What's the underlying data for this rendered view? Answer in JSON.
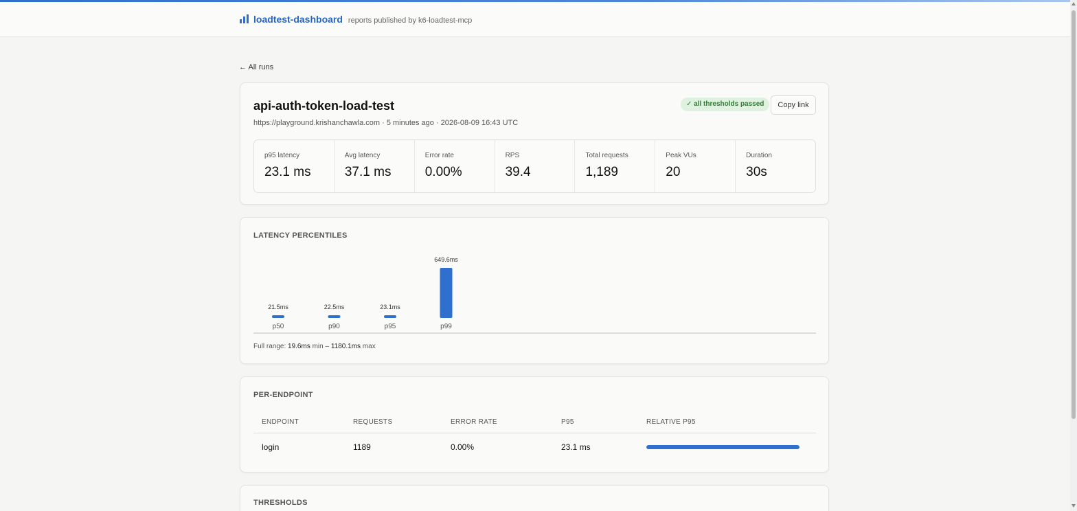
{
  "header": {
    "brand_name": "loadtest-dashboard",
    "brand_sub": "reports published by k6-loadtest-mcp",
    "brand_icon": "bar-chart-icon"
  },
  "nav": {
    "back_label": "← All runs"
  },
  "run": {
    "title": "api-auth-token-load-test",
    "meta": "https://playground.krishanchawla.com · 5 minutes ago · 2026-08-09 16:43 UTC",
    "badge": "✓ all thresholds passed",
    "copy_label": "Copy link",
    "stats": [
      {
        "label": "p95 latency",
        "value": "23.1 ms"
      },
      {
        "label": "Avg latency",
        "value": "37.1 ms"
      },
      {
        "label": "Error rate",
        "value": "0.00%"
      },
      {
        "label": "RPS",
        "value": "39.4"
      },
      {
        "label": "Total requests",
        "value": "1,189"
      },
      {
        "label": "Peak VUs",
        "value": "20"
      },
      {
        "label": "Duration",
        "value": "30s"
      }
    ]
  },
  "latency": {
    "title": "LATENCY PERCENTILES",
    "foot_prefix": "Full range: ",
    "foot_min": "19.6ms",
    "foot_min_label": " min – ",
    "foot_max": "1180.1ms",
    "foot_max_label": " max"
  },
  "chart_data": {
    "type": "bar",
    "categories": [
      "p50",
      "p90",
      "p95",
      "p99"
    ],
    "values": [
      21.5,
      22.5,
      23.1,
      649.6
    ],
    "data_labels": [
      "21.5ms",
      "22.5ms",
      "23.1ms",
      "649.6ms"
    ],
    "unit": "ms",
    "title": "LATENCY PERCENTILES",
    "range_min": 19.6,
    "range_max": 1180.1,
    "color": "#2f6fce"
  },
  "endpoints": {
    "title": "PER-ENDPOINT",
    "columns": [
      "ENDPOINT",
      "REQUESTS",
      "ERROR RATE",
      "P95",
      "RELATIVE P95"
    ],
    "rows": [
      {
        "endpoint": "login",
        "requests": "1189",
        "error_rate": "0.00%",
        "p95": "23.1 ms",
        "relative_p95": 1.0
      }
    ]
  },
  "thresholds": {
    "title": "THRESHOLDS"
  },
  "colors": {
    "accent": "#2f6fce",
    "success_bg": "#dff2df",
    "success_text": "#2e7d32"
  }
}
